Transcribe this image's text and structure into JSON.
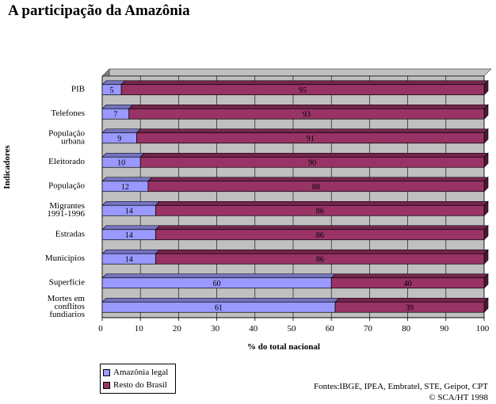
{
  "header": {
    "title": "A participação da Amazônia"
  },
  "chart_data": {
    "type": "bar",
    "orientation": "horizontal",
    "stacked": true,
    "categories": [
      "PIB",
      "Telefones",
      "População urbana",
      "Eleitorado",
      "População",
      "Migrantes 1991-1996",
      "Estradas",
      "Municipios",
      "Superficie",
      "Mortes em conflitos fundiarios"
    ],
    "category_lines": [
      [
        "PIB"
      ],
      [
        "Telefones"
      ],
      [
        "População",
        "urbana"
      ],
      [
        "Eleitorado"
      ],
      [
        "População"
      ],
      [
        "Migrantes",
        "1991-1996"
      ],
      [
        "Estradas"
      ],
      [
        "Municipios"
      ],
      [
        "Superficie"
      ],
      [
        "Mortes em",
        "conflitos",
        "fundiarios"
      ]
    ],
    "series": [
      {
        "name": "Amazônia legal",
        "color": "#9999ff",
        "values": [
          5,
          7,
          9,
          10,
          12,
          14,
          14,
          14,
          60,
          61
        ]
      },
      {
        "name": "Resto do Brasil",
        "color": "#993366",
        "values": [
          95,
          93,
          91,
          90,
          88,
          86,
          86,
          86,
          40,
          39
        ]
      }
    ],
    "xlabel": "% do total nacional",
    "ylabel": "Indicadores",
    "xlim": [
      0,
      100
    ],
    "xticks": [
      0,
      10,
      20,
      30,
      40,
      50,
      60,
      70,
      80,
      90,
      100
    ],
    "grid": true,
    "legend_position": "bottom-left"
  },
  "source": {
    "line1": "Fontes:IBGE, IPEA, Embratel, STE, Geipot, CPT",
    "line2": "© SCA/HT 1998"
  }
}
